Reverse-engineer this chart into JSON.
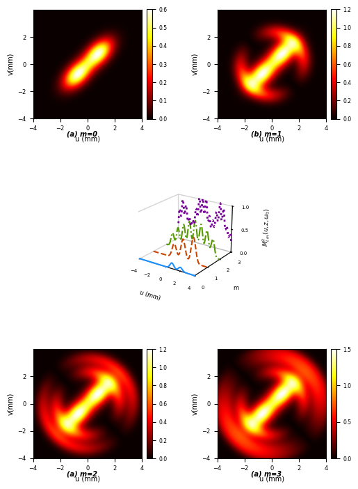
{
  "xlim": [
    -4,
    4
  ],
  "ylim": [
    -4,
    4
  ],
  "xlabel": "u (mm)",
  "ylabel": "v(mm)",
  "colormap_name": "hot",
  "cb_m0_max": 0.6,
  "cb_m1_max": 1.2,
  "cb_m2_max": 1.2,
  "cb_m3_max": 1.5,
  "cb_m0_ticks": [
    0,
    0.1,
    0.2,
    0.3,
    0.4,
    0.5,
    0.6
  ],
  "cb_m1_ticks": [
    0,
    0.2,
    0.4,
    0.6,
    0.8,
    1.0,
    1.2
  ],
  "cb_m2_ticks": [
    0,
    0.2,
    0.4,
    0.6,
    0.8,
    1.0,
    1.2
  ],
  "cb_m3_ticks": [
    0,
    0.5,
    1.0,
    1.5
  ],
  "label_a": "(a) m=0",
  "label_b": "(b) m=1",
  "label_c": "(a) m=2",
  "label_d": "(a) m=3",
  "colors_3d": [
    "#1E90FF",
    "#CC4400",
    "#559900",
    "#770099"
  ],
  "linestyles_3d": [
    "-",
    "--",
    "-.",
    ":"
  ],
  "lw_3d": [
    1.5,
    1.5,
    1.5,
    2.0
  ]
}
